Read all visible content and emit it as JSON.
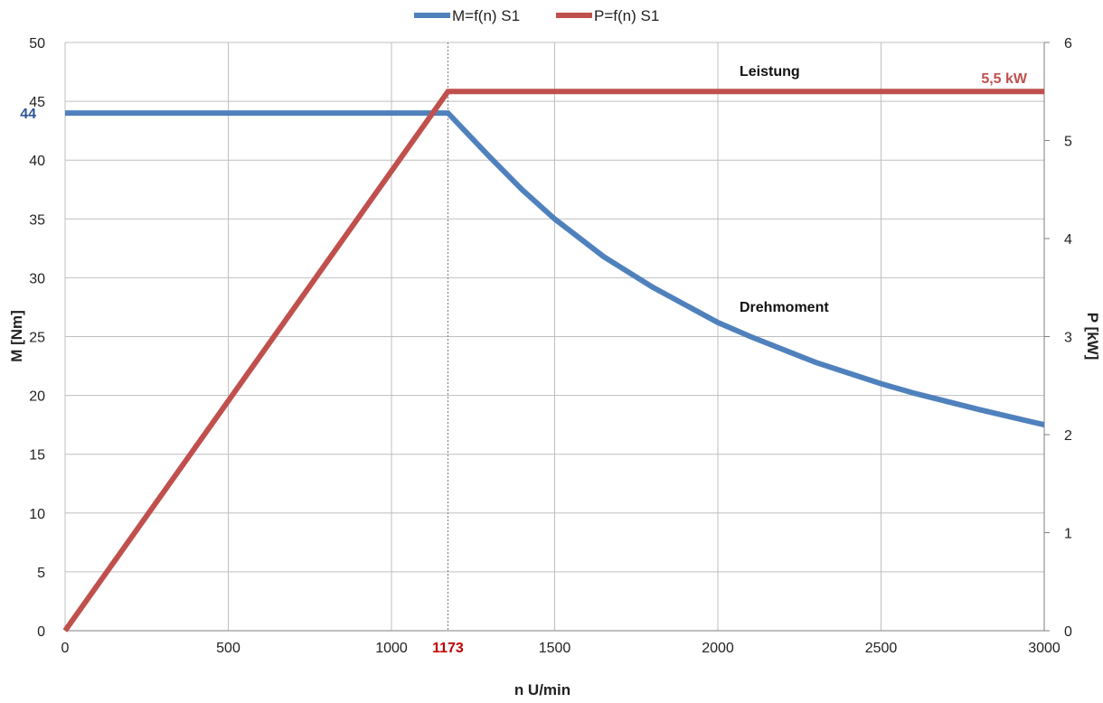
{
  "chart_data": {
    "type": "line",
    "xlabel": "n U/min",
    "ylabel_left": "M [Nm]",
    "ylabel_right": "P [kW]",
    "xlim": [
      0,
      3000
    ],
    "ylim_left": [
      0,
      50
    ],
    "ylim_right": [
      0,
      6
    ],
    "x_ticks": [
      0,
      500,
      1000,
      1500,
      2000,
      2500,
      3000
    ],
    "y_left_ticks": [
      0,
      5,
      10,
      15,
      20,
      25,
      30,
      35,
      40,
      45,
      50
    ],
    "y_right_ticks": [
      0,
      1,
      2,
      3,
      4,
      5,
      6
    ],
    "grid": true,
    "legend_position": "top-center",
    "series": [
      {
        "name": "M=f(n) S1",
        "axis": "left",
        "color": "#4f81bd",
        "points": [
          [
            0,
            44
          ],
          [
            1173,
            44
          ],
          [
            1300,
            40.3
          ],
          [
            1400,
            37.5
          ],
          [
            1500,
            35.0
          ],
          [
            1650,
            31.8
          ],
          [
            1800,
            29.2
          ],
          [
            2000,
            26.2
          ],
          [
            2100,
            25.0
          ],
          [
            2300,
            22.8
          ],
          [
            2500,
            21.0
          ],
          [
            2600,
            20.2
          ],
          [
            2800,
            18.8
          ],
          [
            3000,
            17.5
          ]
        ]
      },
      {
        "name": "P=f(n) S1",
        "axis": "right",
        "color": "#c0504d",
        "points": [
          [
            0,
            0
          ],
          [
            1173,
            5.5
          ],
          [
            3000,
            5.5
          ]
        ]
      }
    ],
    "annotations": {
      "marker_x": 1173,
      "marker_x_label": "1173",
      "marker_y_left": 44,
      "marker_y_label": "44",
      "power_label": "Leistung",
      "power_value_label": "5,5 kW",
      "torque_label": "Drehmoment"
    }
  }
}
